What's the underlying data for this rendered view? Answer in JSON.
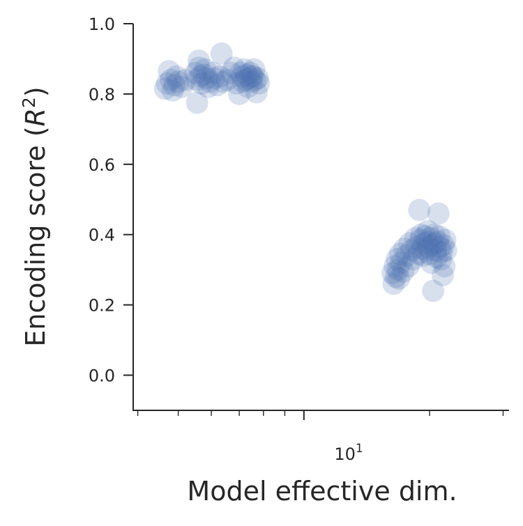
{
  "chart_data": {
    "type": "scatter",
    "xlabel": "Model effective dim.",
    "ylabel_main": "Encoding score (",
    "ylabel_var": "R",
    "ylabel_sup": "2",
    "ylabel_close": ")",
    "x_scale": "log",
    "xlim": [
      3.9,
      31
    ],
    "ylim": [
      -0.1,
      1.0
    ],
    "yticks": [
      "0.0",
      "0.2",
      "0.4",
      "0.6",
      "0.8",
      "1.0"
    ],
    "ytick_values": [
      0.0,
      0.2,
      0.4,
      0.6,
      0.8,
      1.0
    ],
    "xtick_major": {
      "base": "10",
      "exponent": "1",
      "value": 10
    },
    "xtick_minor_values": [
      4,
      5,
      6,
      7,
      8,
      9,
      20,
      30
    ],
    "grid": false,
    "legend": "none",
    "marker_color": "#4C72B0",
    "marker_opacity": 0.22,
    "series": [
      {
        "points": [
          [
            4.65,
            0.815
          ],
          [
            4.7,
            0.83
          ],
          [
            4.75,
            0.865
          ],
          [
            4.8,
            0.84
          ],
          [
            4.85,
            0.81
          ],
          [
            4.9,
            0.825
          ],
          [
            4.95,
            0.85
          ],
          [
            5.0,
            0.835
          ],
          [
            5.1,
            0.82
          ],
          [
            5.2,
            0.84
          ],
          [
            5.5,
            0.86
          ],
          [
            5.55,
            0.84
          ],
          [
            5.6,
            0.875
          ],
          [
            5.6,
            0.895
          ],
          [
            5.65,
            0.85
          ],
          [
            5.7,
            0.83
          ],
          [
            5.75,
            0.855
          ],
          [
            5.8,
            0.87
          ],
          [
            5.85,
            0.845
          ],
          [
            5.9,
            0.82
          ],
          [
            5.55,
            0.775
          ],
          [
            5.95,
            0.835
          ],
          [
            6.05,
            0.86
          ],
          [
            6.1,
            0.845
          ],
          [
            6.2,
            0.825
          ],
          [
            6.35,
            0.915
          ],
          [
            6.3,
            0.85
          ],
          [
            6.4,
            0.835
          ],
          [
            6.55,
            0.84
          ],
          [
            6.7,
            0.86
          ],
          [
            6.8,
            0.875
          ],
          [
            6.9,
            0.83
          ],
          [
            7.0,
            0.8
          ],
          [
            7.05,
            0.86
          ],
          [
            7.1,
            0.85
          ],
          [
            7.15,
            0.835
          ],
          [
            7.2,
            0.87
          ],
          [
            7.25,
            0.84
          ],
          [
            7.3,
            0.855
          ],
          [
            7.35,
            0.82
          ],
          [
            7.4,
            0.845
          ],
          [
            7.45,
            0.86
          ],
          [
            7.5,
            0.835
          ],
          [
            7.55,
            0.85
          ],
          [
            7.6,
            0.87
          ],
          [
            7.65,
            0.84
          ],
          [
            7.7,
            0.805
          ],
          [
            7.75,
            0.845
          ],
          [
            7.8,
            0.83
          ],
          [
            7.5,
            0.85
          ],
          [
            16.3,
            0.29
          ],
          [
            16.4,
            0.26
          ],
          [
            16.5,
            0.31
          ],
          [
            16.6,
            0.28
          ],
          [
            16.7,
            0.33
          ],
          [
            16.8,
            0.3
          ],
          [
            16.9,
            0.275
          ],
          [
            17.0,
            0.345
          ],
          [
            17.1,
            0.32
          ],
          [
            17.3,
            0.295
          ],
          [
            17.4,
            0.36
          ],
          [
            17.6,
            0.34
          ],
          [
            17.8,
            0.31
          ],
          [
            17.9,
            0.375
          ],
          [
            18.1,
            0.355
          ],
          [
            18.3,
            0.33
          ],
          [
            18.5,
            0.39
          ],
          [
            18.6,
            0.365
          ],
          [
            18.8,
            0.345
          ],
          [
            18.9,
            0.47
          ],
          [
            19.0,
            0.385
          ],
          [
            19.1,
            0.4
          ],
          [
            19.2,
            0.36
          ],
          [
            19.3,
            0.34
          ],
          [
            19.4,
            0.375
          ],
          [
            19.5,
            0.395
          ],
          [
            19.6,
            0.355
          ],
          [
            19.7,
            0.38
          ],
          [
            19.8,
            0.41
          ],
          [
            19.9,
            0.365
          ],
          [
            20.0,
            0.345
          ],
          [
            20.1,
            0.39
          ],
          [
            20.2,
            0.32
          ],
          [
            20.3,
            0.37
          ],
          [
            20.4,
            0.24
          ],
          [
            20.5,
            0.4
          ],
          [
            20.6,
            0.375
          ],
          [
            20.7,
            0.355
          ],
          [
            20.8,
            0.335
          ],
          [
            20.9,
            0.38
          ],
          [
            21.0,
            0.46
          ],
          [
            21.1,
            0.395
          ],
          [
            21.2,
            0.365
          ],
          [
            21.3,
            0.33
          ],
          [
            21.4,
            0.35
          ],
          [
            21.5,
            0.285
          ],
          [
            21.6,
            0.37
          ],
          [
            21.7,
            0.31
          ],
          [
            21.8,
            0.385
          ],
          [
            21.9,
            0.355
          ]
        ]
      }
    ]
  }
}
